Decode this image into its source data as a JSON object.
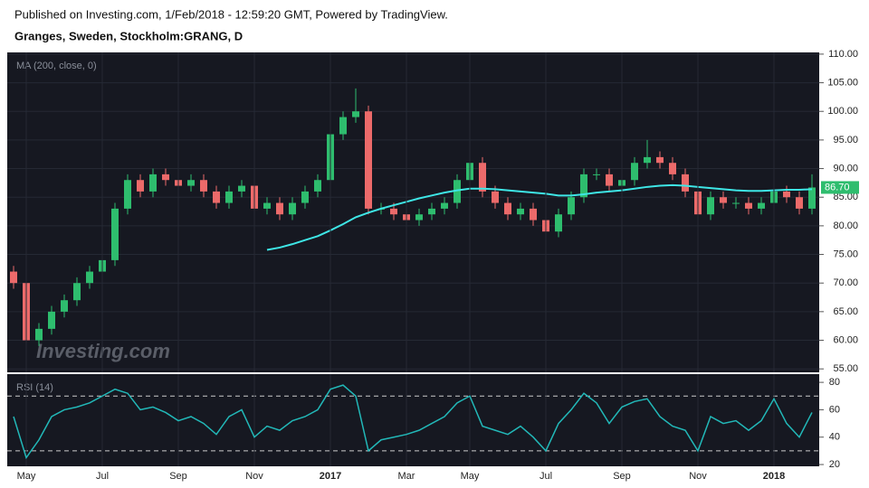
{
  "header": {
    "published": "Published on Investing.com, 1/Feb/2018 - 12:59:20 GMT, Powered by TradingView.",
    "symbol": "Granges, Sweden, Stockholm:GRANG, D",
    "watermark": "Investing.com"
  },
  "chart_data": [
    {
      "type": "candlestick",
      "title": "MA (200, close, 0)",
      "up_color": "#2ebd6e",
      "down_color": "#ec6a6a",
      "open": [
        72,
        70,
        60,
        62,
        65,
        67,
        70,
        72,
        74,
        83,
        88,
        86,
        89,
        88,
        87,
        88,
        86,
        84,
        86,
        87,
        83,
        84,
        82,
        84,
        86,
        88,
        96,
        99,
        100,
        83,
        83,
        82,
        81,
        82,
        83,
        84,
        88,
        91,
        86,
        84,
        82,
        83,
        81,
        79,
        82,
        85,
        89,
        89,
        87,
        88,
        91,
        92,
        91,
        89,
        86,
        82,
        85,
        84,
        84,
        83,
        84,
        86,
        85,
        83
      ],
      "high": [
        73,
        71,
        63,
        66,
        68,
        71,
        73,
        75,
        84,
        89,
        89,
        90,
        90,
        89,
        89,
        89,
        87,
        87,
        88,
        88,
        85,
        85,
        85,
        87,
        89,
        97,
        100,
        104,
        101,
        84,
        84,
        83,
        83,
        84,
        85,
        89,
        94,
        92,
        87,
        85,
        84,
        84,
        82,
        83,
        86,
        90,
        90,
        90,
        89,
        92,
        95,
        93,
        92,
        90,
        87,
        86,
        86,
        85,
        85,
        85,
        87,
        87,
        86,
        89
      ],
      "low": [
        69,
        58,
        59,
        61,
        64,
        66,
        69,
        71,
        73,
        82,
        85,
        85,
        87,
        86,
        86,
        85,
        83,
        83,
        85,
        82,
        82,
        81,
        81,
        83,
        85,
        87,
        95,
        98,
        82,
        82,
        81,
        80,
        80,
        81,
        82,
        83,
        87,
        85,
        83,
        81,
        81,
        80,
        77,
        78,
        81,
        84,
        88,
        86,
        86,
        87,
        90,
        90,
        88,
        85,
        77,
        81,
        83,
        83,
        82,
        82,
        83,
        84,
        82,
        82
      ],
      "close": [
        70,
        60,
        62,
        65,
        67,
        70,
        72,
        74,
        83,
        88,
        86,
        89,
        88,
        87,
        88,
        86,
        84,
        86,
        87,
        83,
        84,
        82,
        84,
        86,
        88,
        96,
        99,
        100,
        83,
        83,
        82,
        81,
        82,
        83,
        84,
        88,
        91,
        86,
        84,
        82,
        83,
        81,
        79,
        82,
        85,
        89,
        89,
        87,
        88,
        91,
        92,
        91,
        89,
        86,
        82,
        85,
        84,
        84,
        83,
        84,
        86,
        85,
        83,
        86.7
      ],
      "last_label": "86.70",
      "ma": {
        "color": "#3ee6e6",
        "values": [
          null,
          null,
          null,
          null,
          null,
          null,
          null,
          null,
          null,
          null,
          null,
          null,
          null,
          null,
          null,
          null,
          null,
          null,
          null,
          null,
          75.8,
          76.2,
          76.8,
          77.5,
          78.2,
          79.2,
          80.3,
          81.5,
          82.3,
          83,
          83.6,
          84.2,
          84.8,
          85.3,
          85.8,
          86.2,
          86.5,
          86.5,
          86.4,
          86.2,
          86,
          85.8,
          85.6,
          85.3,
          85.3,
          85.5,
          85.8,
          86,
          86.2,
          86.5,
          86.8,
          87,
          87.1,
          87,
          86.8,
          86.6,
          86.4,
          86.2,
          86.1,
          86.1,
          86.2,
          86.3,
          86.3,
          86.4
        ]
      },
      "ylim": [
        54.4,
        110.3
      ],
      "yticks": [
        {
          "value": 55,
          "label": "55.00"
        },
        {
          "value": 60,
          "label": "60.00"
        },
        {
          "value": 65,
          "label": "65.00"
        },
        {
          "value": 70,
          "label": "70.00"
        },
        {
          "value": 75,
          "label": "75.00"
        },
        {
          "value": 80,
          "label": "80.00"
        },
        {
          "value": 85,
          "label": "85.00"
        },
        {
          "value": 90,
          "label": "90.00"
        },
        {
          "value": 95,
          "label": "95.00"
        },
        {
          "value": 100,
          "label": "100.00"
        },
        {
          "value": 105,
          "label": "105.00"
        },
        {
          "value": 110,
          "label": "110.00"
        }
      ],
      "grid": true
    },
    {
      "type": "line",
      "title": "RSI (14)",
      "color": "#22b8b8",
      "categories": [
        null,
        "May",
        null,
        null,
        null,
        null,
        null,
        "Jul",
        null,
        null,
        null,
        null,
        null,
        "Sep",
        null,
        null,
        null,
        null,
        null,
        "Nov",
        null,
        null,
        null,
        null,
        null,
        "2017",
        null,
        null,
        null,
        null,
        null,
        "Mar",
        null,
        null,
        null,
        null,
        "May",
        null,
        null,
        null,
        null,
        null,
        "Jul",
        null,
        null,
        null,
        null,
        null,
        "Sep",
        null,
        null,
        null,
        null,
        null,
        "Nov",
        null,
        null,
        null,
        null,
        null,
        "2018",
        null,
        null,
        null
      ],
      "values": [
        55,
        25,
        38,
        55,
        60,
        62,
        65,
        70,
        75,
        72,
        60,
        62,
        58,
        52,
        55,
        50,
        42,
        55,
        60,
        40,
        48,
        45,
        52,
        55,
        60,
        75,
        78,
        70,
        30,
        38,
        40,
        42,
        45,
        50,
        55,
        65,
        70,
        48,
        45,
        42,
        48,
        40,
        30,
        50,
        60,
        72,
        65,
        50,
        62,
        66,
        68,
        55,
        48,
        45,
        30,
        55,
        50,
        52,
        45,
        52,
        68,
        50,
        40,
        58
      ],
      "bands": [
        30,
        70
      ],
      "ylim": [
        18.7,
        86
      ],
      "yticks": [
        20,
        40,
        60,
        80
      ]
    }
  ]
}
